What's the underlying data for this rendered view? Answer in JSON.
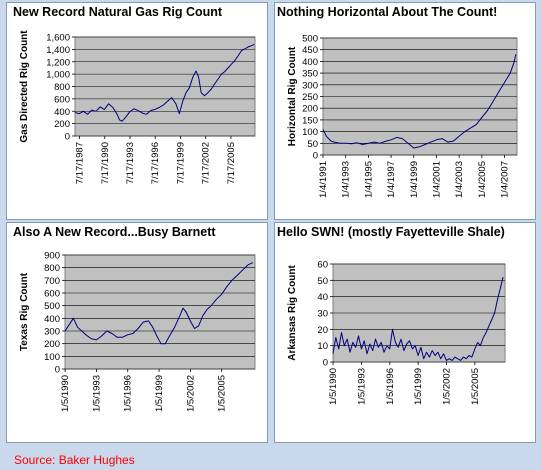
{
  "chart_data": [
    {
      "type": "line",
      "title": "New Record Natural Gas Rig Count",
      "ylabel": "Gas Directed Rig Count",
      "ylim": [
        0,
        1600
      ],
      "yticks": [
        0,
        200,
        400,
        600,
        800,
        1000,
        1200,
        1400,
        1600
      ],
      "ytick_labels": [
        "0",
        "200",
        "400",
        "600",
        "800",
        "1,000",
        "1,200",
        "1,400",
        "1,600"
      ],
      "xlim": [
        1987.0,
        2008.4
      ],
      "xticks": [
        1987.54,
        1990.54,
        1993.54,
        1996.54,
        1999.54,
        2002.54,
        2005.54
      ],
      "xtick_labels": [
        "7/17/1987",
        "7/17/1990",
        "7/17/1993",
        "7/17/1996",
        "7/17/1999",
        "7/17/2002",
        "7/17/2005"
      ],
      "grid": true,
      "color": "#000080",
      "x": [
        1987.0,
        1987.5,
        1988.0,
        1988.5,
        1989.0,
        1989.5,
        1990.0,
        1990.5,
        1991.0,
        1991.5,
        1992.0,
        1992.3,
        1992.6,
        1993.0,
        1993.5,
        1994.0,
        1994.5,
        1995.0,
        1995.5,
        1996.0,
        1996.5,
        1997.0,
        1997.5,
        1998.0,
        1998.5,
        1999.0,
        1999.4,
        1999.8,
        2000.2,
        2000.6,
        2001.0,
        2001.4,
        2001.7,
        2002.0,
        2002.4,
        2002.8,
        2003.2,
        2003.6,
        2004.0,
        2004.4,
        2004.8,
        2005.2,
        2005.6,
        2006.0,
        2006.4,
        2006.8,
        2007.2,
        2007.6,
        2008.0,
        2008.3
      ],
      "values": [
        380,
        360,
        400,
        350,
        420,
        400,
        470,
        430,
        520,
        460,
        350,
        260,
        240,
        300,
        390,
        440,
        410,
        370,
        350,
        410,
        430,
        460,
        500,
        560,
        620,
        520,
        360,
        560,
        700,
        780,
        950,
        1050,
        950,
        700,
        650,
        700,
        760,
        840,
        920,
        1000,
        1040,
        1100,
        1160,
        1220,
        1300,
        1380,
        1410,
        1440,
        1460,
        1480
      ]
    },
    {
      "type": "line",
      "title": "Nothing Horizontal About The Count!",
      "ylabel": "Horizontal Rig Count",
      "ylim": [
        0,
        500
      ],
      "yticks": [
        0,
        50,
        100,
        150,
        200,
        250,
        300,
        350,
        400,
        450,
        500
      ],
      "ytick_labels": [
        "0",
        "50",
        "100",
        "150",
        "200",
        "250",
        "300",
        "350",
        "400",
        "450",
        "500"
      ],
      "xlim": [
        1991.0,
        2008.1
      ],
      "xticks": [
        1991.0,
        1993.0,
        1995.0,
        1997.0,
        1999.0,
        2001.0,
        2003.0,
        2005.0,
        2007.0
      ],
      "xtick_labels": [
        "1/4/1991",
        "1/4/1993",
        "1/4/1995",
        "1/4/1997",
        "1/4/1999",
        "1/4/2001",
        "1/4/2003",
        "1/4/2005",
        "1/4/2007"
      ],
      "grid": true,
      "color": "#000080",
      "x": [
        1991.0,
        1991.3,
        1991.7,
        1992.0,
        1992.5,
        1993.0,
        1993.5,
        1994.0,
        1994.5,
        1995.0,
        1995.5,
        1996.0,
        1996.5,
        1997.0,
        1997.5,
        1998.0,
        1998.5,
        1999.0,
        1999.5,
        2000.0,
        2000.5,
        2001.0,
        2001.5,
        2002.0,
        2002.5,
        2003.0,
        2003.5,
        2004.0,
        2004.5,
        2005.0,
        2005.5,
        2006.0,
        2006.5,
        2007.0,
        2007.5,
        2007.8,
        2008.0
      ],
      "values": [
        110,
        80,
        60,
        55,
        50,
        50,
        48,
        52,
        45,
        50,
        55,
        50,
        58,
        65,
        75,
        70,
        50,
        30,
        35,
        45,
        55,
        65,
        70,
        55,
        60,
        80,
        100,
        115,
        130,
        160,
        190,
        230,
        270,
        310,
        350,
        390,
        430
      ]
    },
    {
      "type": "line",
      "title": "Also A New Record...Busy Barnett",
      "ylabel": "Texas Rig Count",
      "ylim": [
        0,
        900
      ],
      "yticks": [
        0,
        100,
        200,
        300,
        400,
        500,
        600,
        700,
        800,
        900
      ],
      "ytick_labels": [
        "0",
        "100",
        "200",
        "300",
        "400",
        "500",
        "600",
        "700",
        "800",
        "900"
      ],
      "xlim": [
        1990.0,
        2008.2
      ],
      "xticks": [
        1990.01,
        1993.01,
        1996.01,
        1999.01,
        2002.01,
        2005.01
      ],
      "xtick_labels": [
        "1/5/1990",
        "1/5/1993",
        "1/5/1996",
        "1/5/1999",
        "1/5/2002",
        "1/5/2005"
      ],
      "grid": true,
      "color": "#000080",
      "x": [
        1990.0,
        1990.4,
        1990.8,
        1991.2,
        1991.6,
        1992.0,
        1992.5,
        1993.0,
        1993.5,
        1994.0,
        1994.5,
        1995.0,
        1995.5,
        1996.0,
        1996.5,
        1997.0,
        1997.5,
        1998.0,
        1998.4,
        1998.8,
        1999.2,
        1999.6,
        2000.0,
        2000.5,
        2001.0,
        2001.3,
        2001.6,
        2002.0,
        2002.4,
        2002.8,
        2003.2,
        2003.6,
        2004.0,
        2004.5,
        2005.0,
        2005.5,
        2006.0,
        2006.5,
        2007.0,
        2007.5,
        2008.0
      ],
      "values": [
        300,
        350,
        400,
        330,
        300,
        270,
        240,
        230,
        260,
        300,
        280,
        250,
        250,
        270,
        280,
        320,
        370,
        380,
        330,
        260,
        200,
        200,
        260,
        330,
        420,
        480,
        450,
        380,
        320,
        340,
        420,
        470,
        500,
        550,
        590,
        650,
        700,
        740,
        780,
        820,
        840
      ]
    },
    {
      "type": "line",
      "title": "Hello SWN! (mostly Fayetteville Shale)",
      "ylabel": "Arkansas Rig Count",
      "ylim": [
        0,
        60
      ],
      "yticks": [
        0,
        10,
        20,
        30,
        40,
        50,
        60
      ],
      "ytick_labels": [
        "0",
        "10",
        "20",
        "30",
        "40",
        "50",
        "60"
      ],
      "xlim": [
        1990.0,
        2008.2
      ],
      "xticks": [
        1990.01,
        1993.01,
        1996.01,
        1999.01,
        2002.01,
        2005.01
      ],
      "xtick_labels": [
        "1/5/1990",
        "1/5/1993",
        "1/5/1996",
        "1/5/1999",
        "1/5/2002",
        "1/5/2005"
      ],
      "grid": true,
      "color": "#000080",
      "x": [
        1990.0,
        1990.3,
        1990.6,
        1990.9,
        1991.2,
        1991.5,
        1991.8,
        1992.1,
        1992.4,
        1992.7,
        1993.0,
        1993.3,
        1993.6,
        1993.9,
        1994.2,
        1994.5,
        1994.8,
        1995.1,
        1995.4,
        1995.7,
        1996.0,
        1996.3,
        1996.6,
        1996.9,
        1997.2,
        1997.5,
        1997.8,
        1998.1,
        1998.4,
        1998.7,
        1999.0,
        1999.3,
        1999.6,
        1999.9,
        2000.2,
        2000.5,
        2000.8,
        2001.1,
        2001.4,
        2001.7,
        2002.0,
        2002.3,
        2002.6,
        2002.9,
        2003.2,
        2003.5,
        2003.8,
        2004.1,
        2004.4,
        2004.7,
        2005.0,
        2005.3,
        2005.6,
        2005.9,
        2006.2,
        2006.5,
        2006.8,
        2007.1,
        2007.4,
        2007.7,
        2008.0
      ],
      "values": [
        5,
        15,
        8,
        18,
        10,
        14,
        6,
        12,
        9,
        16,
        8,
        13,
        5,
        11,
        7,
        14,
        9,
        12,
        6,
        10,
        8,
        20,
        12,
        9,
        14,
        7,
        11,
        13,
        8,
        10,
        4,
        9,
        2,
        6,
        3,
        7,
        4,
        6,
        2,
        5,
        1,
        2,
        1,
        3,
        2,
        1,
        3,
        2,
        4,
        3,
        8,
        12,
        10,
        15,
        18,
        22,
        26,
        30,
        38,
        45,
        52
      ]
    }
  ],
  "source": "Source: Baker Hughes"
}
